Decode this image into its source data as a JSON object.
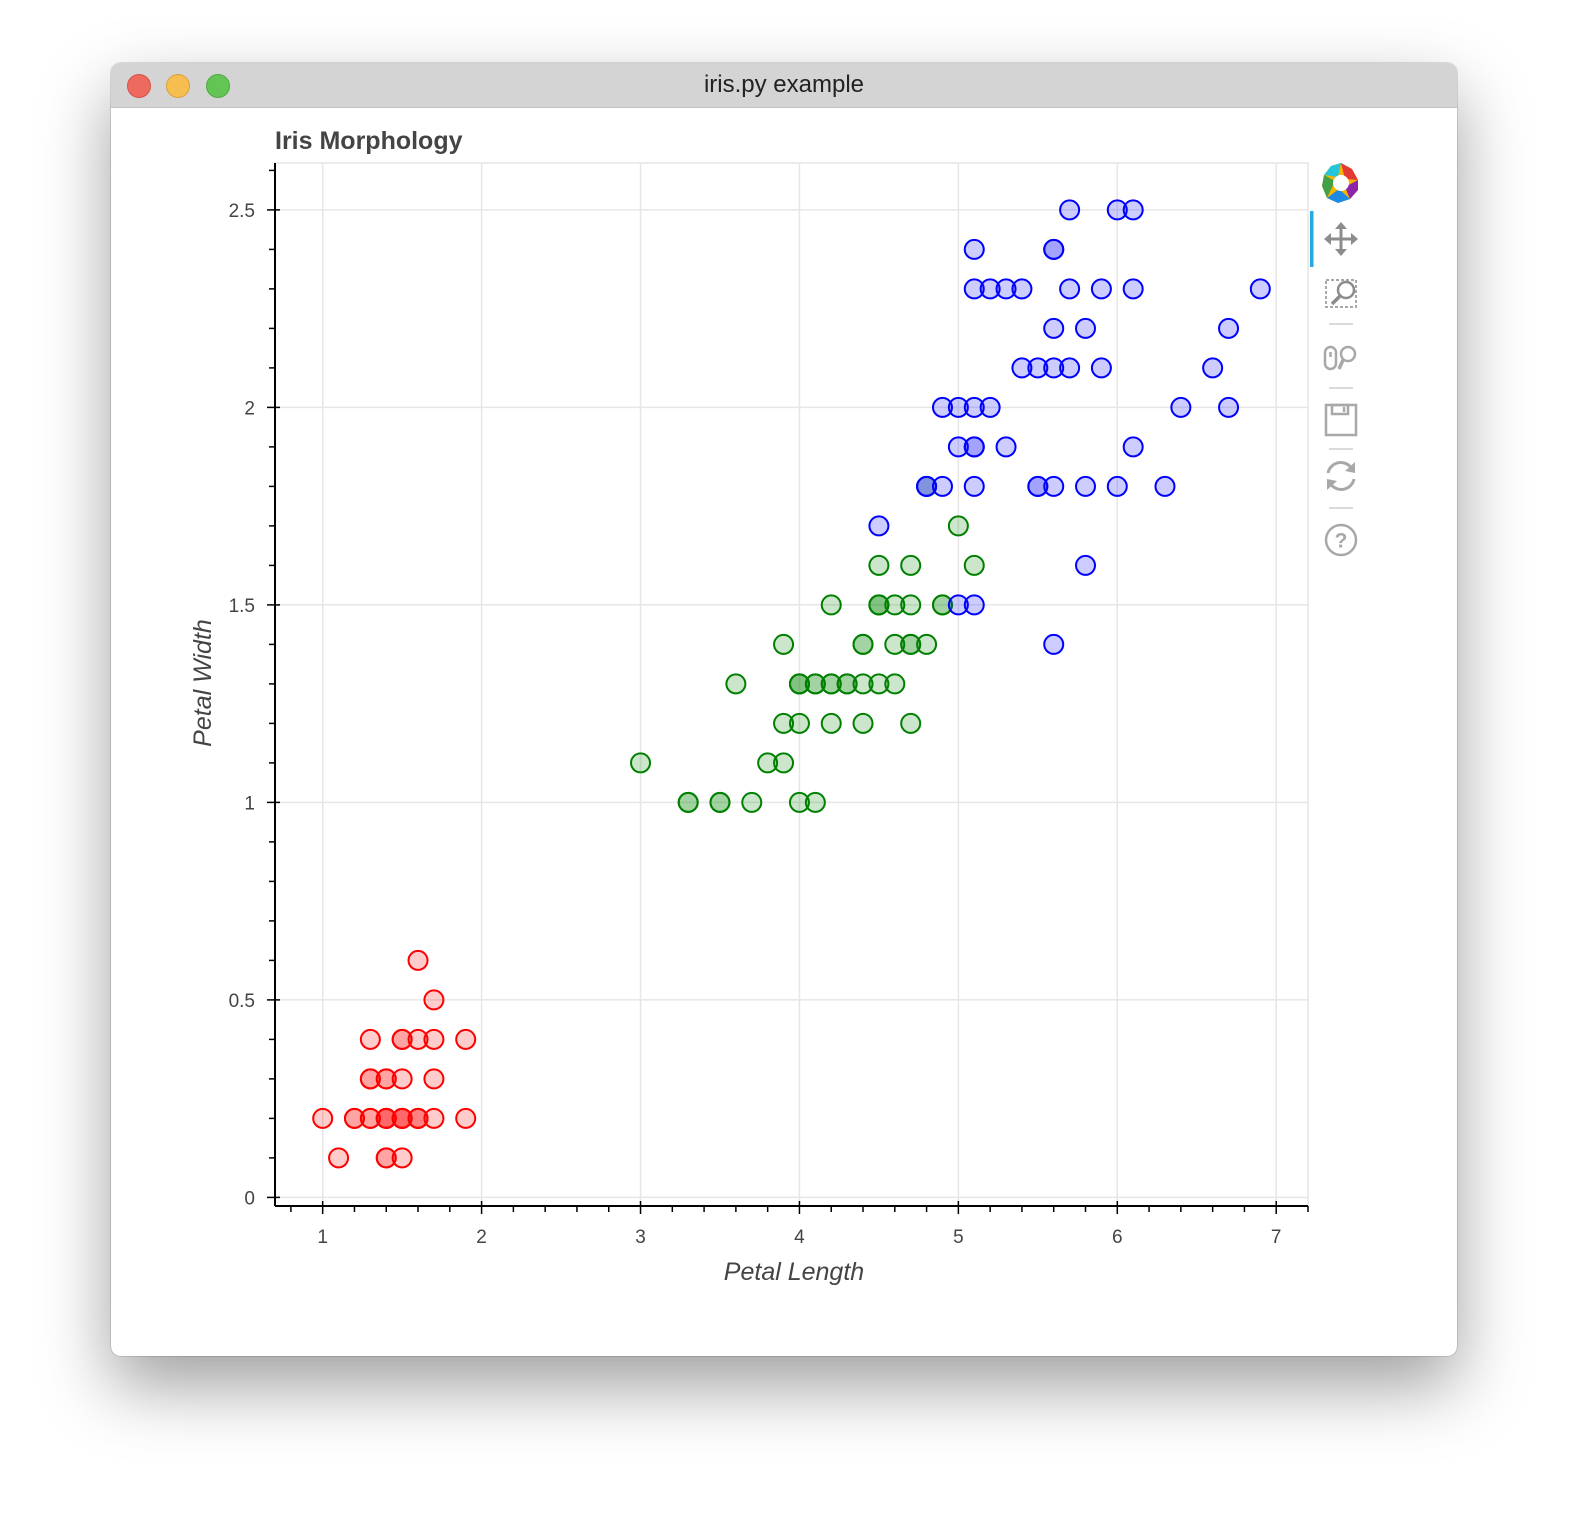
{
  "window": {
    "title": "iris.py example"
  },
  "chart_data": {
    "type": "scatter",
    "title": "Iris Morphology",
    "xlabel": "Petal Length",
    "ylabel": "Petal Width",
    "xlim": [
      0.7,
      7.2
    ],
    "ylim": [
      0,
      2.6
    ],
    "grid": true,
    "x_ticks": [
      1,
      2,
      3,
      4,
      5,
      6,
      7
    ],
    "x_tick_labels": [
      "1",
      "2",
      "3",
      "4",
      "5",
      "6",
      "7"
    ],
    "y_ticks": [
      0,
      0.5,
      1,
      1.5,
      2,
      2.5
    ],
    "y_tick_labels": [
      "0",
      "0.5",
      "1",
      "1.5",
      "2",
      "2.5"
    ],
    "series": [
      {
        "color": "#ff0000",
        "points": [
          [
            1.0,
            0.2
          ],
          [
            1.1,
            0.1
          ],
          [
            1.2,
            0.2
          ],
          [
            1.2,
            0.2
          ],
          [
            1.3,
            0.2
          ],
          [
            1.3,
            0.2
          ],
          [
            1.3,
            0.3
          ],
          [
            1.3,
            0.3
          ],
          [
            1.3,
            0.4
          ],
          [
            1.4,
            0.1
          ],
          [
            1.4,
            0.1
          ],
          [
            1.4,
            0.2
          ],
          [
            1.4,
            0.2
          ],
          [
            1.4,
            0.2
          ],
          [
            1.4,
            0.2
          ],
          [
            1.4,
            0.3
          ],
          [
            1.4,
            0.3
          ],
          [
            1.5,
            0.1
          ],
          [
            1.5,
            0.2
          ],
          [
            1.5,
            0.2
          ],
          [
            1.5,
            0.2
          ],
          [
            1.5,
            0.2
          ],
          [
            1.5,
            0.3
          ],
          [
            1.5,
            0.4
          ],
          [
            1.5,
            0.4
          ],
          [
            1.6,
            0.2
          ],
          [
            1.6,
            0.2
          ],
          [
            1.6,
            0.2
          ],
          [
            1.6,
            0.4
          ],
          [
            1.6,
            0.6
          ],
          [
            1.7,
            0.2
          ],
          [
            1.7,
            0.3
          ],
          [
            1.7,
            0.4
          ],
          [
            1.7,
            0.5
          ],
          [
            1.9,
            0.2
          ],
          [
            1.9,
            0.4
          ]
        ]
      },
      {
        "color": "#008000",
        "points": [
          [
            3.0,
            1.1
          ],
          [
            3.3,
            1.0
          ],
          [
            3.3,
            1.0
          ],
          [
            3.5,
            1.0
          ],
          [
            3.5,
            1.0
          ],
          [
            3.6,
            1.3
          ],
          [
            3.7,
            1.0
          ],
          [
            3.8,
            1.1
          ],
          [
            3.9,
            1.1
          ],
          [
            3.9,
            1.2
          ],
          [
            3.9,
            1.4
          ],
          [
            4.0,
            1.0
          ],
          [
            4.0,
            1.2
          ],
          [
            4.0,
            1.3
          ],
          [
            4.0,
            1.3
          ],
          [
            4.0,
            1.3
          ],
          [
            4.1,
            1.0
          ],
          [
            4.1,
            1.3
          ],
          [
            4.1,
            1.3
          ],
          [
            4.2,
            1.2
          ],
          [
            4.2,
            1.3
          ],
          [
            4.2,
            1.3
          ],
          [
            4.2,
            1.5
          ],
          [
            4.3,
            1.3
          ],
          [
            4.3,
            1.3
          ],
          [
            4.4,
            1.2
          ],
          [
            4.4,
            1.3
          ],
          [
            4.4,
            1.4
          ],
          [
            4.4,
            1.4
          ],
          [
            4.5,
            1.3
          ],
          [
            4.5,
            1.5
          ],
          [
            4.5,
            1.5
          ],
          [
            4.5,
            1.5
          ],
          [
            4.5,
            1.6
          ],
          [
            4.6,
            1.3
          ],
          [
            4.6,
            1.4
          ],
          [
            4.6,
            1.5
          ],
          [
            4.7,
            1.2
          ],
          [
            4.7,
            1.4
          ],
          [
            4.7,
            1.4
          ],
          [
            4.7,
            1.5
          ],
          [
            4.7,
            1.6
          ],
          [
            4.8,
            1.4
          ],
          [
            4.8,
            1.8
          ],
          [
            4.9,
            1.5
          ],
          [
            4.9,
            1.5
          ],
          [
            5.0,
            1.7
          ],
          [
            5.1,
            1.6
          ]
        ]
      },
      {
        "color": "#0000ff",
        "points": [
          [
            4.5,
            1.7
          ],
          [
            4.8,
            1.8
          ],
          [
            4.8,
            1.8
          ],
          [
            4.9,
            1.8
          ],
          [
            4.9,
            2.0
          ],
          [
            5.0,
            1.5
          ],
          [
            5.0,
            1.9
          ],
          [
            5.0,
            2.0
          ],
          [
            5.1,
            1.5
          ],
          [
            5.1,
            1.8
          ],
          [
            5.1,
            1.9
          ],
          [
            5.1,
            1.9
          ],
          [
            5.1,
            2.0
          ],
          [
            5.1,
            2.3
          ],
          [
            5.1,
            2.4
          ],
          [
            5.2,
            2.0
          ],
          [
            5.2,
            2.3
          ],
          [
            5.3,
            1.9
          ],
          [
            5.3,
            2.3
          ],
          [
            5.4,
            2.1
          ],
          [
            5.4,
            2.3
          ],
          [
            5.5,
            1.8
          ],
          [
            5.5,
            1.8
          ],
          [
            5.5,
            2.1
          ],
          [
            5.6,
            1.4
          ],
          [
            5.6,
            1.8
          ],
          [
            5.6,
            2.1
          ],
          [
            5.6,
            2.2
          ],
          [
            5.6,
            2.4
          ],
          [
            5.6,
            2.4
          ],
          [
            5.7,
            2.1
          ],
          [
            5.7,
            2.3
          ],
          [
            5.7,
            2.5
          ],
          [
            5.8,
            1.6
          ],
          [
            5.8,
            1.8
          ],
          [
            5.8,
            2.2
          ],
          [
            5.9,
            2.1
          ],
          [
            5.9,
            2.3
          ],
          [
            6.0,
            1.8
          ],
          [
            6.0,
            2.5
          ],
          [
            6.1,
            1.9
          ],
          [
            6.1,
            2.3
          ],
          [
            6.1,
            2.5
          ],
          [
            6.3,
            1.8
          ],
          [
            6.4,
            2.0
          ],
          [
            6.6,
            2.1
          ],
          [
            6.7,
            2.0
          ],
          [
            6.7,
            2.2
          ],
          [
            6.9,
            2.3
          ]
        ]
      }
    ]
  },
  "toolbar": {
    "tools": [
      "bokeh-logo-icon",
      "pan-icon",
      "box-zoom-icon",
      "wheel-zoom-icon",
      "save-icon",
      "reset-icon",
      "help-icon"
    ]
  }
}
